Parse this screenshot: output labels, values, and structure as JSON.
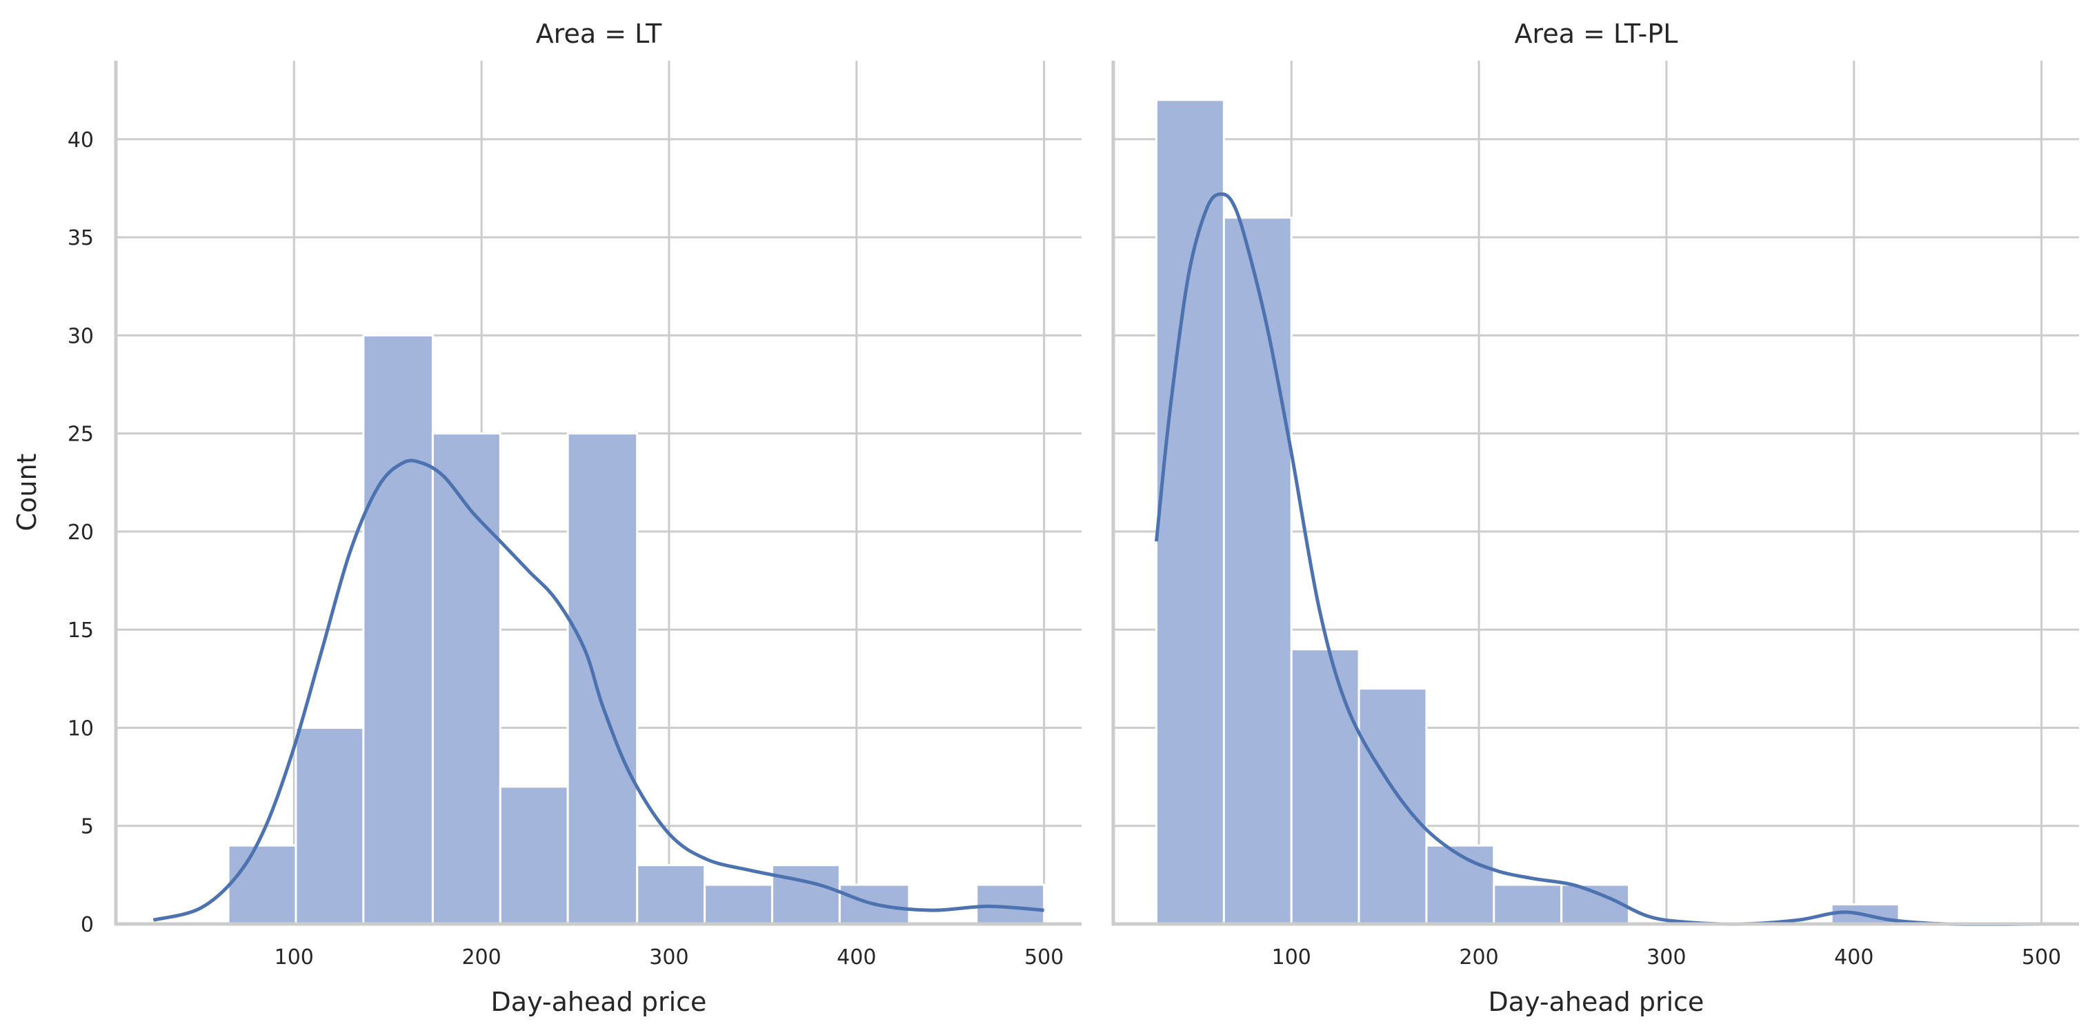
{
  "colors": {
    "bar": "#a3b5da",
    "line": "#4c72b0",
    "grid": "#cccccc",
    "text": "#262626"
  },
  "chart_data": [
    {
      "type": "bar",
      "title": "Area = LT",
      "xlabel": "Day-ahead price",
      "ylabel": "Count",
      "xlim": [
        5,
        520
      ],
      "ylim": [
        0,
        44
      ],
      "xticks": [
        100,
        200,
        300,
        400,
        500
      ],
      "yticks": [
        0,
        5,
        10,
        15,
        20,
        25,
        30,
        35,
        40
      ],
      "grid": true,
      "histogram": {
        "bin_edges": [
          65,
          101,
          137,
          174,
          210,
          246,
          283,
          319,
          355,
          391,
          428,
          464,
          500
        ],
        "counts": [
          4,
          10,
          30,
          25,
          7,
          25,
          3,
          2,
          3,
          2,
          0,
          2
        ]
      },
      "kde": {
        "x": [
          25,
          50,
          70,
          85,
          100,
          115,
          130,
          145,
          158,
          168,
          180,
          195,
          210,
          225,
          240,
          255,
          265,
          280,
          300,
          320,
          345,
          380,
          410,
          440,
          470,
          500
        ],
        "y": [
          0.2,
          0.8,
          2.5,
          5,
          9,
          14,
          19,
          22.3,
          23.5,
          23.5,
          22.8,
          21,
          19.5,
          18,
          16.5,
          14,
          11,
          7.5,
          4.6,
          3.3,
          2.7,
          2,
          1,
          0.7,
          0.9,
          0.7
        ]
      }
    },
    {
      "type": "bar",
      "title": "Area = LT-PL",
      "xlabel": "Day-ahead price",
      "ylabel": "",
      "xlim": [
        5,
        520
      ],
      "ylim": [
        0,
        44
      ],
      "xticks": [
        100,
        200,
        300,
        400,
        500
      ],
      "yticks": [
        0,
        5,
        10,
        15,
        20,
        25,
        30,
        35,
        40
      ],
      "grid": true,
      "histogram": {
        "bin_edges": [
          28,
          64,
          100,
          136,
          172,
          208,
          244,
          280,
          316,
          352,
          388,
          424
        ],
        "counts": [
          42,
          36,
          14,
          12,
          4,
          2,
          2,
          0,
          0,
          0,
          1
        ]
      },
      "kde": {
        "x": [
          28,
          35,
          45,
          55,
          63,
          70,
          78,
          88,
          100,
          115,
          130,
          150,
          170,
          190,
          210,
          230,
          250,
          270,
          290,
          310,
          340,
          370,
          395,
          420,
          450,
          500
        ],
        "y": [
          19.5,
          26,
          33,
          36.5,
          37.2,
          36.5,
          34,
          30,
          24,
          16,
          11,
          7.5,
          5,
          3.5,
          2.7,
          2.3,
          2,
          1.3,
          0.4,
          0.1,
          0,
          0.2,
          0.6,
          0.2,
          0,
          0
        ]
      }
    }
  ]
}
